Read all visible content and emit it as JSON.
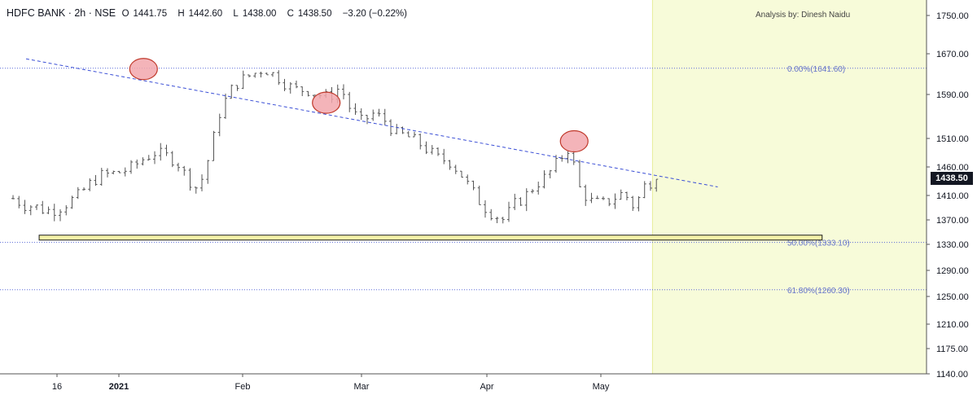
{
  "header": {
    "symbol": "HDFC BANK",
    "interval": "2h",
    "exchange": "NSE",
    "open_label": "O",
    "open": "1441.75",
    "high_label": "H",
    "high": "1442.60",
    "low_label": "L",
    "low": "1438.00",
    "close_label": "C",
    "close": "1438.50",
    "change": "−3.20 (−0.22%)"
  },
  "author": "Analysis by: Dinesh Naidu",
  "last_price_label": "1438.50",
  "colors": {
    "candle": "#555555",
    "trendline": "#3b4fd6",
    "fib_line": "#5b6bd8",
    "fib_text": "#6674c9",
    "support_zone_fill": "#f5f2a8",
    "support_zone_stroke": "#1a1a1a",
    "highlight_circle_fill": "#f2a7ad",
    "highlight_circle_stroke": "#c0392b",
    "future_area_fill": "#f7fbd9",
    "price_tag_bg": "#131722"
  },
  "chart_data": {
    "type": "ohlc",
    "y_axis": {
      "ticks": [
        "1750.00",
        "1670.00",
        "1590.00",
        "1510.00",
        "1460.00",
        "1410.00",
        "1370.00",
        "1330.00",
        "1290.00",
        "1250.00",
        "1210.00",
        "1175.00",
        "1140.00"
      ]
    },
    "x_axis": {
      "ticks": [
        "16",
        "2021",
        "Feb",
        "Mar",
        "Apr",
        "May"
      ]
    },
    "fib_levels": [
      {
        "label": "0.00%(1641.60)",
        "price": 1641.6
      },
      {
        "label": "50.00%(1333.10)",
        "price": 1333.1
      },
      {
        "label": "61.80%(1260.30)",
        "price": 1260.3
      }
    ],
    "support_zone": [
      1337,
      1345
    ],
    "trendline": [
      [
        1,
        1660
      ],
      [
        54,
        1425
      ]
    ],
    "highlight_circles_at": [
      [
        10,
        1640
      ],
      [
        24,
        1575
      ],
      [
        43,
        1505
      ]
    ],
    "future_shaded_from_index": 49,
    "x_range": [
      -1,
      70
    ],
    "closes": [
      1405,
      1395,
      1392,
      1385,
      1388,
      1398,
      1410,
      1430,
      1445,
      1448,
      1452,
      1460,
      1475,
      1485,
      1480,
      1470,
      1440,
      1420,
      1480,
      1560,
      1600,
      1620,
      1630,
      1640,
      1628,
      1610,
      1600,
      1598,
      1590,
      1585,
      1605,
      1560,
      1540,
      1555,
      1545,
      1520,
      1515,
      1505,
      1490,
      1475,
      1470,
      1450,
      1420,
      1395,
      1380,
      1370,
      1395,
      1410,
      1430,
      1445,
      1470,
      1495,
      1420,
      1400,
      1395,
      1405,
      1415,
      1390,
      1430,
      1438.5
    ],
    "candle_count": 110
  }
}
